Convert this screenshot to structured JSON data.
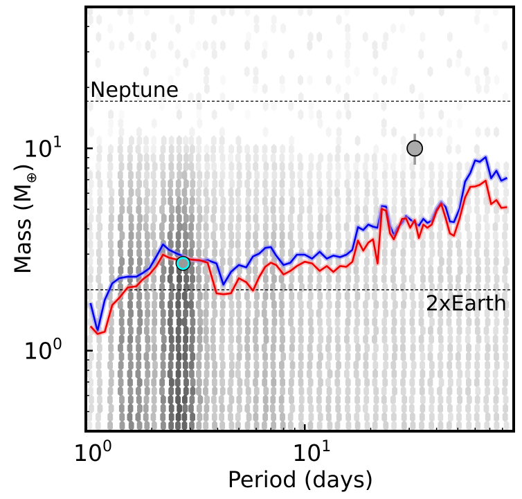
{
  "chart_data": {
    "type": "line",
    "title": "",
    "xlabel": "Period (days)",
    "ylabel_main": "Mass (M",
    "ylabel_symbol": "⊕",
    "ylabel_close": ")",
    "x_scale": "log",
    "y_scale": "log",
    "xlim": [
      1.0,
      90.0
    ],
    "ylim": [
      0.4,
      50.0
    ],
    "x_major_ticks": [
      {
        "value": 1,
        "base": "10",
        "exp": "0"
      },
      {
        "value": 10,
        "base": "10",
        "exp": "1"
      }
    ],
    "y_major_ticks": [
      {
        "value": 1,
        "base": "10",
        "exp": "0"
      },
      {
        "value": 10,
        "base": "10",
        "exp": "1"
      }
    ],
    "reference_lines": [
      {
        "name": "Neptune",
        "label": "Neptune",
        "y": 17.1,
        "label_align": "left"
      },
      {
        "name": "2xEarth",
        "label": "2xEarth",
        "y": 2.0,
        "label_align": "right"
      }
    ],
    "series": [
      {
        "name": "blue-limit",
        "color": "#0000ee",
        "band_color": "#8a8aff",
        "points": [
          [
            1.05,
            1.72
          ],
          [
            1.13,
            1.25
          ],
          [
            1.22,
            1.78
          ],
          [
            1.32,
            2.15
          ],
          [
            1.42,
            2.28
          ],
          [
            1.55,
            2.32
          ],
          [
            1.7,
            2.32
          ],
          [
            1.82,
            2.42
          ],
          [
            1.95,
            2.55
          ],
          [
            2.1,
            2.92
          ],
          [
            2.25,
            3.35
          ],
          [
            2.4,
            3.15
          ],
          [
            2.6,
            3.02
          ],
          [
            2.8,
            2.92
          ],
          [
            3.0,
            2.82
          ],
          [
            3.3,
            2.78
          ],
          [
            3.6,
            2.8
          ],
          [
            3.95,
            2.7
          ],
          [
            4.25,
            2.12
          ],
          [
            4.6,
            2.45
          ],
          [
            5.0,
            2.65
          ],
          [
            5.4,
            2.58
          ],
          [
            5.8,
            2.92
          ],
          [
            6.2,
            3.02
          ],
          [
            6.6,
            3.22
          ],
          [
            7.0,
            3.25
          ],
          [
            7.4,
            2.95
          ],
          [
            8.0,
            2.65
          ],
          [
            8.6,
            2.72
          ],
          [
            9.2,
            2.98
          ],
          [
            10.0,
            2.98
          ],
          [
            10.8,
            2.85
          ],
          [
            11.7,
            3.08
          ],
          [
            12.6,
            2.85
          ],
          [
            13.5,
            2.95
          ],
          [
            14.5,
            2.9
          ],
          [
            15.5,
            2.98
          ],
          [
            16.5,
            3.15
          ],
          [
            17.5,
            4.08
          ],
          [
            18.5,
            3.95
          ],
          [
            19.5,
            4.2
          ],
          [
            20.5,
            4.1
          ],
          [
            21.5,
            4.05
          ],
          [
            22.5,
            5.18
          ],
          [
            23.5,
            5.15
          ],
          [
            24.5,
            4.15
          ],
          [
            25.5,
            3.72
          ],
          [
            26.5,
            4.05
          ],
          [
            27.8,
            4.28
          ],
          [
            29.0,
            4.62
          ],
          [
            30.3,
            4.45
          ],
          [
            31.8,
            4.28
          ],
          [
            33.2,
            4.15
          ],
          [
            34.8,
            4.48
          ],
          [
            36.3,
            4.28
          ],
          [
            38.0,
            4.38
          ],
          [
            40.0,
            5.02
          ],
          [
            42.0,
            5.42
          ],
          [
            44.0,
            5.12
          ],
          [
            46.0,
            4.35
          ],
          [
            48.0,
            4.32
          ],
          [
            51.0,
            5.05
          ],
          [
            54.0,
            6.85
          ],
          [
            57.0,
            7.55
          ],
          [
            60.0,
            8.72
          ],
          [
            63.0,
            8.58
          ],
          [
            67.0,
            9.05
          ],
          [
            71.0,
            7.12
          ],
          [
            75.0,
            7.75
          ],
          [
            79.0,
            6.92
          ],
          [
            84.0,
            7.15
          ]
        ]
      },
      {
        "name": "red-limit",
        "color": "#ee0000",
        "band_color": "#ff9a9a",
        "points": [
          [
            1.05,
            1.32
          ],
          [
            1.13,
            1.21
          ],
          [
            1.22,
            1.24
          ],
          [
            1.32,
            1.68
          ],
          [
            1.42,
            1.82
          ],
          [
            1.55,
            2.05
          ],
          [
            1.7,
            2.08
          ],
          [
            1.82,
            2.25
          ],
          [
            1.95,
            2.38
          ],
          [
            2.1,
            2.62
          ],
          [
            2.25,
            2.98
          ],
          [
            2.4,
            2.88
          ],
          [
            2.6,
            2.82
          ],
          [
            2.8,
            2.9
          ],
          [
            3.0,
            2.82
          ],
          [
            3.3,
            2.8
          ],
          [
            3.6,
            2.72
          ],
          [
            3.95,
            1.92
          ],
          [
            4.25,
            1.9
          ],
          [
            4.6,
            1.92
          ],
          [
            5.0,
            2.28
          ],
          [
            5.4,
            2.18
          ],
          [
            5.8,
            1.98
          ],
          [
            6.2,
            2.32
          ],
          [
            6.6,
            2.6
          ],
          [
            7.0,
            2.72
          ],
          [
            7.4,
            2.65
          ],
          [
            8.0,
            2.38
          ],
          [
            8.6,
            2.48
          ],
          [
            9.2,
            2.62
          ],
          [
            10.0,
            2.75
          ],
          [
            10.8,
            2.7
          ],
          [
            11.7,
            2.48
          ],
          [
            12.6,
            2.62
          ],
          [
            13.5,
            2.45
          ],
          [
            14.5,
            2.62
          ],
          [
            15.5,
            2.6
          ],
          [
            16.5,
            2.75
          ],
          [
            17.5,
            3.5
          ],
          [
            18.5,
            3.12
          ],
          [
            19.5,
            3.42
          ],
          [
            20.5,
            3.55
          ],
          [
            21.5,
            2.7
          ],
          [
            22.5,
            5.02
          ],
          [
            23.5,
            4.92
          ],
          [
            24.5,
            3.8
          ],
          [
            25.5,
            3.55
          ],
          [
            26.5,
            3.9
          ],
          [
            27.8,
            4.48
          ],
          [
            29.0,
            4.5
          ],
          [
            30.3,
            4.05
          ],
          [
            31.8,
            4.42
          ],
          [
            33.2,
            3.6
          ],
          [
            34.8,
            4.2
          ],
          [
            36.3,
            4.05
          ],
          [
            38.0,
            4.2
          ],
          [
            40.0,
            4.9
          ],
          [
            42.0,
            5.32
          ],
          [
            44.0,
            4.52
          ],
          [
            46.0,
            3.8
          ],
          [
            48.0,
            3.7
          ],
          [
            51.0,
            4.52
          ],
          [
            54.0,
            5.72
          ],
          [
            57.0,
            6.45
          ],
          [
            60.0,
            6.48
          ],
          [
            63.0,
            6.6
          ],
          [
            67.0,
            6.92
          ],
          [
            71.0,
            5.3
          ],
          [
            75.0,
            5.55
          ],
          [
            79.0,
            5.08
          ],
          [
            84.0,
            5.12
          ]
        ]
      }
    ],
    "planets": [
      {
        "name": "known-planet",
        "period": 31.8,
        "mass": 10.0,
        "err_low": 8.3,
        "err_high": 11.8,
        "face": "#aaaaaa",
        "edge": "#000000",
        "err_color": "#999999"
      },
      {
        "name": "detected-candidate",
        "period": 2.78,
        "mass": 2.7,
        "face": "#999999",
        "edge": "#00ffff",
        "outer_ring": "#000000"
      }
    ],
    "density_map": {
      "description_free": true,
      "column_weights": [
        [
          1.05,
          0.1
        ],
        [
          1.15,
          0.18
        ],
        [
          1.3,
          0.3
        ],
        [
          1.45,
          0.55
        ],
        [
          1.6,
          0.62
        ],
        [
          1.75,
          0.58
        ],
        [
          1.9,
          0.45
        ],
        [
          2.05,
          0.35
        ],
        [
          2.25,
          0.6
        ],
        [
          2.45,
          0.78
        ],
        [
          2.65,
          0.88
        ],
        [
          2.85,
          0.82
        ],
        [
          3.05,
          0.7
        ],
        [
          3.3,
          0.42
        ],
        [
          3.55,
          0.32
        ],
        [
          3.85,
          0.28
        ],
        [
          4.2,
          0.25
        ],
        [
          4.6,
          0.24
        ],
        [
          5.0,
          0.26
        ],
        [
          5.5,
          0.28
        ],
        [
          6.0,
          0.3
        ],
        [
          6.6,
          0.32
        ],
        [
          7.2,
          0.34
        ],
        [
          7.9,
          0.32
        ],
        [
          8.7,
          0.24
        ],
        [
          9.6,
          0.22
        ],
        [
          10.6,
          0.22
        ],
        [
          11.7,
          0.21
        ],
        [
          12.9,
          0.2
        ],
        [
          14.2,
          0.2
        ],
        [
          15.7,
          0.19
        ],
        [
          17.3,
          0.19
        ],
        [
          19.1,
          0.18
        ],
        [
          21.0,
          0.18
        ],
        [
          23.2,
          0.17
        ],
        [
          25.6,
          0.17
        ],
        [
          28.2,
          0.17
        ],
        [
          31.1,
          0.16
        ],
        [
          34.3,
          0.16
        ],
        [
          37.8,
          0.16
        ],
        [
          41.7,
          0.16
        ],
        [
          46.0,
          0.15
        ],
        [
          50.7,
          0.15
        ],
        [
          55.9,
          0.15
        ],
        [
          61.7,
          0.15
        ],
        [
          68.0,
          0.14
        ],
        [
          75.0,
          0.14
        ],
        [
          82.7,
          0.14
        ]
      ]
    }
  }
}
